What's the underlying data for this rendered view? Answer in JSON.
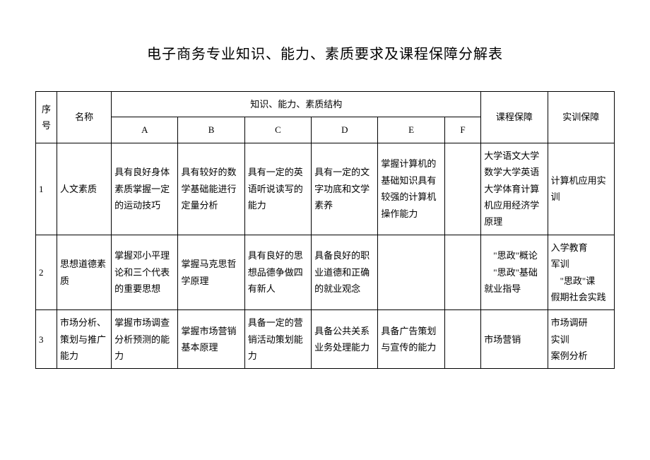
{
  "title": "电子商务专业知识、能力、素质要求及课程保障分解表",
  "headers": {
    "seq": "序号",
    "name": "名称",
    "structure": "知识、能力、素质结构",
    "subA": "A",
    "subB": "B",
    "subC": "C",
    "subD": "D",
    "subE": "E",
    "subF": "F",
    "course": "课程保障",
    "train": "实训保障"
  },
  "rows": [
    {
      "seq": "1",
      "name": "人文素质",
      "A": "具有良好身体素质掌握一定的运动技巧",
      "B": "具有较好的数学基础能进行定量分析",
      "C": "具有一定的英语听说读写的能力",
      "D": "具有一定的文字功底和文学素养",
      "E": "掌握计算机的基础知识具有较强的计算机操作能力",
      "F": "",
      "course": "大学语文大学数学大学英语大学体育计算机应用经济学原理",
      "train": "计算机应用实训"
    },
    {
      "seq": "2",
      "name": "思想道德素质",
      "A": "掌握邓小平理论和三个代表的重要思想",
      "B": "掌握马克思哲学原理",
      "C": "具有良好的思想品德争做四有新人",
      "D": "具备良好的职业道德和正确的就业观念",
      "E": "",
      "F": "",
      "course": "　\"思政\"概论\n　\"思政\"基础\n就业指导",
      "train": "入学教育\n军训\n　\"思政\"课\n假期社会实践"
    },
    {
      "seq": "3",
      "name": "市场分析、策划与推广能力",
      "A": "掌握市场调查分析预测的能力",
      "B": "掌握市场营销基本原理",
      "C": "具备一定的营销活动策划能力",
      "D": "具备公共关系业务处理能力",
      "E": "具备广告策划与宣传的能力",
      "F": "",
      "course": "市场营销",
      "train": "市场调研\n实训\n案例分析"
    }
  ]
}
